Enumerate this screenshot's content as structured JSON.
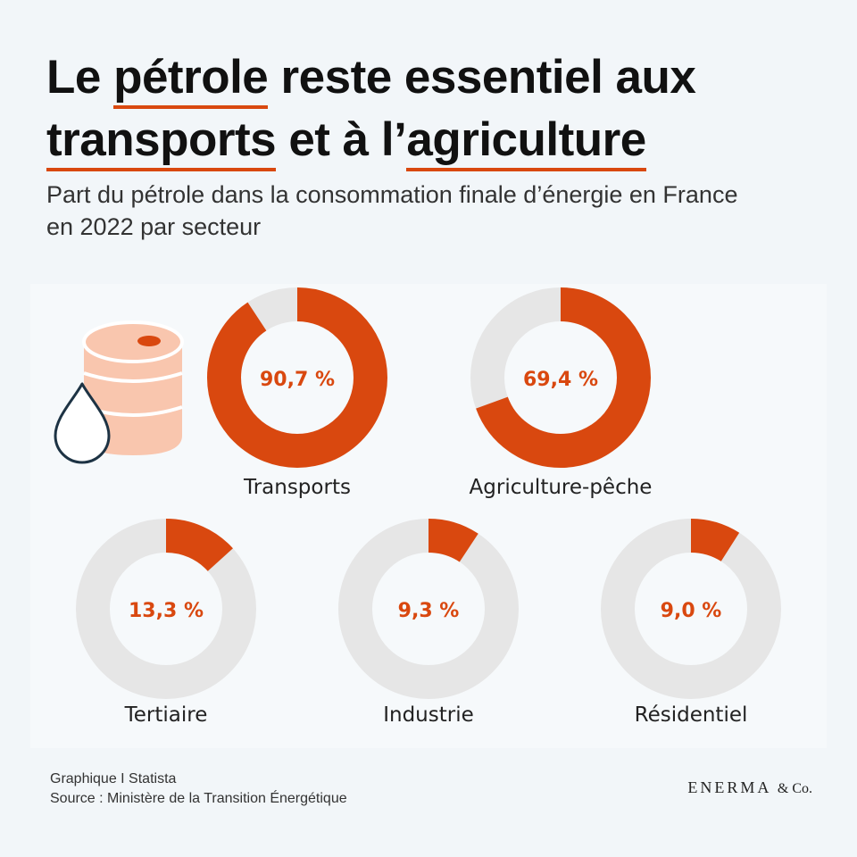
{
  "header": {
    "title_parts": [
      "Le ",
      "pétrole",
      " reste essentiel aux ",
      "transports",
      " et à l’",
      "agriculture"
    ],
    "subtitle": "Part du pétrole dans la consommation finale d’énergie en France en 2022 par secteur"
  },
  "colors": {
    "accent": "#d9480f",
    "track": "#e6e6e6",
    "barrel": "#f9c6ae",
    "drop_outline": "#1d3344"
  },
  "icons": [
    "oil-barrel-icon",
    "oil-drop-icon"
  ],
  "chart_data": {
    "type": "pie",
    "style": "donut",
    "unit": "%",
    "categories": [
      "Transports",
      "Agriculture-pêche",
      "Tertiaire",
      "Industrie",
      "Résidentiel"
    ],
    "values": [
      90.7,
      69.4,
      13.3,
      9.3,
      9.0
    ],
    "value_labels": [
      "90,7 %",
      "69,4 %",
      "13,3 %",
      "9,3 %",
      "9,0 %"
    ]
  },
  "footer": {
    "credit": "Graphique I Statista",
    "source": "Source : Ministère de la Transition Énergétique",
    "brand_main": "ENERMA",
    "brand_suffix": "& Co."
  }
}
